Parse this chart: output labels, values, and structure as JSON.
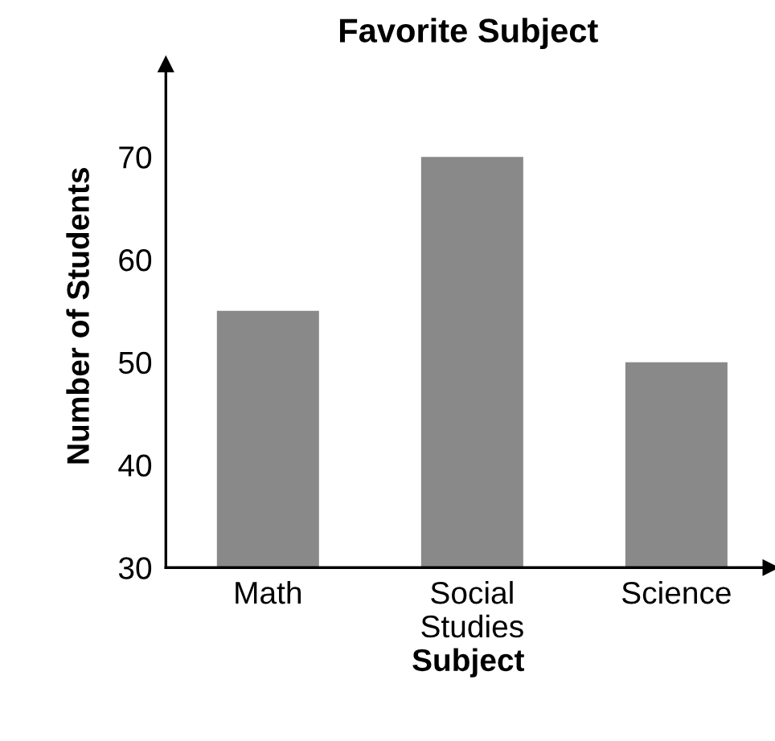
{
  "chart_data": {
    "type": "bar",
    "title": "Favorite Subject",
    "xlabel": "Subject",
    "ylabel": "Number of Students",
    "categories": [
      "Math",
      "Social\nStudies",
      "Science"
    ],
    "values": [
      55,
      70,
      50
    ],
    "color": "#898989",
    "ylim": [
      30,
      79
    ],
    "yticks": [
      30,
      40,
      50,
      60,
      70
    ],
    "grid": false,
    "legend": false
  }
}
